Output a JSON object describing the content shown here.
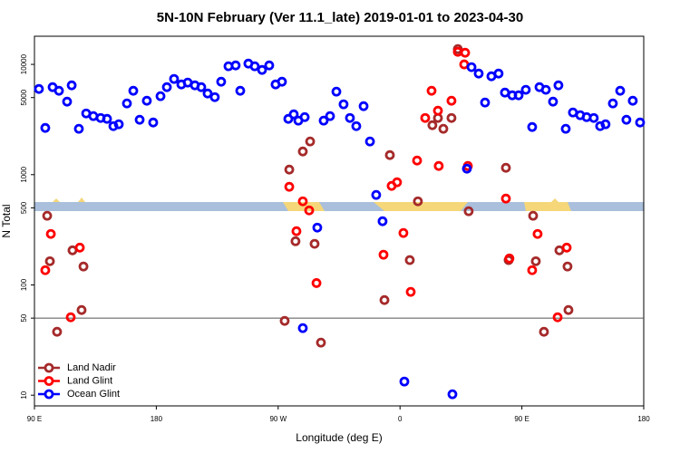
{
  "chart_data": {
    "type": "scatter",
    "title": "5N-10N February (Ver 11.1_late)   2019-01-01 to 2023-04-30",
    "x_label": "Longitude (deg E)",
    "y_label": "N Total",
    "xlim": [
      90,
      540
    ],
    "xticks": [
      {
        "value": 90,
        "label": "90 E"
      },
      {
        "value": 180,
        "label": "180"
      },
      {
        "value": 270,
        "label": "90 W"
      },
      {
        "value": 360,
        "label": "0"
      },
      {
        "value": 450,
        "label": "90 E"
      },
      {
        "value": 540,
        "label": "180"
      }
    ],
    "ylim": [
      8,
      18000
    ],
    "y_scale": "log",
    "yticks": [
      10,
      50,
      100,
      500,
      1000,
      5000,
      10000
    ],
    "hline": 50,
    "legend": "bottom-left",
    "series": [
      {
        "name": "Land Nadir",
        "color": "#a52a2a",
        "x": [
          99.4,
          101.4,
          106.7,
          118.1,
          124.8,
          126.2,
          274.8,
          278.2,
          282.8,
          288.2,
          293.6,
          296.9,
          301.6,
          348.5,
          352.5,
          367.2,
          373.2,
          383.9,
          388.0,
          392.0,
          398.0,
          402.7,
          410.7,
          438.2,
          440.2,
          458.3,
          460.3,
          466.3,
          477.7,
          483.7,
          484.4
        ],
        "values": [
          424,
          164,
          37.6,
          206,
          59.2,
          147,
          47.2,
          1112,
          249,
          1623,
          2000,
          236,
          30.0,
          72.9,
          1504,
          168,
          573,
          2810,
          3266,
          2606,
          3266,
          13770,
          466,
          1154,
          168,
          424,
          164,
          37.6,
          206,
          147,
          59.2
        ]
      },
      {
        "name": "Land Glint",
        "color": "#ff0000",
        "x": [
          98.0,
          102.1,
          116.8,
          123.5,
          278.2,
          283.5,
          288.2,
          292.9,
          298.3,
          347.8,
          353.8,
          357.8,
          362.5,
          367.9,
          372.6,
          378.6,
          383.3,
          388.0,
          388.6,
          398.0,
          402.7,
          407.4,
          408.1,
          410.1,
          438.2,
          440.8,
          457.6,
          461.6,
          476.4,
          483.1
        ],
        "values": [
          136,
          290,
          50.9,
          218,
          776,
          307,
          573,
          474,
          104,
          188,
          791,
          853,
          296,
          86.5,
          1343,
          3266,
          5765,
          3802,
          1199,
          4680,
          13000,
          10000,
          12760,
          1199,
          607,
          174,
          136,
          290,
          50.9,
          218
        ]
      },
      {
        "name": "Ocean Glint",
        "color": "#0000ff",
        "x": [
          93.3,
          98.0,
          103.4,
          108.1,
          114.1,
          117.5,
          122.8,
          128.2,
          133.5,
          138.9,
          143.6,
          148.3,
          152.3,
          158.3,
          163.0,
          167.7,
          173.0,
          177.7,
          183.1,
          187.8,
          193.1,
          198.5,
          203.2,
          208.5,
          213.2,
          217.9,
          223.2,
          227.9,
          233.3,
          238.6,
          242.0,
          248.0,
          252.7,
          258.1,
          263.4,
          268.1,
          272.8,
          277.5,
          281.5,
          284.9,
          289.6,
          288.2,
          298.9,
          303.6,
          308.3,
          313.0,
          318.3,
          323.0,
          327.7,
          333.1,
          337.8,
          342.4,
          347.1,
          363.2,
          398.7,
          409.4,
          412.8,
          418.1,
          422.8,
          427.5,
          432.8,
          437.5,
          442.9,
          447.6,
          452.9,
          457.6,
          463.0,
          467.7,
          473.0,
          477.0,
          482.4,
          487.7,
          493.1,
          497.8,
          503.1,
          507.8,
          511.8,
          517.2,
          522.6,
          527.2,
          531.9,
          537.3
        ],
        "values": [
          5985,
          2655,
          6220,
          5765,
          4595,
          6460,
          2606,
          3590,
          3397,
          3266,
          3206,
          2754,
          2864,
          4426,
          5765,
          3147,
          4680,
          2972,
          5150,
          6220,
          7380,
          6580,
          6840,
          6460,
          6220,
          5445,
          5047,
          6966,
          9616,
          9795,
          5765,
          10170,
          9616,
          8910,
          9795,
          6580,
          6966,
          3206,
          3524,
          3090,
          3326,
          40.6,
          331,
          3090,
          3397,
          5660,
          4345,
          3266,
          2754,
          4180,
          2000,
          655,
          378,
          13.3,
          10.2,
          1133,
          9440,
          8260,
          4510,
          7800,
          8260,
          5550,
          5245,
          5245,
          5885,
          2705,
          6220,
          5885,
          4595,
          6460,
          2606,
          3664,
          3461,
          3326,
          3266,
          2754,
          2864,
          4426,
          5765,
          3147,
          4680,
          2972
        ]
      }
    ]
  }
}
